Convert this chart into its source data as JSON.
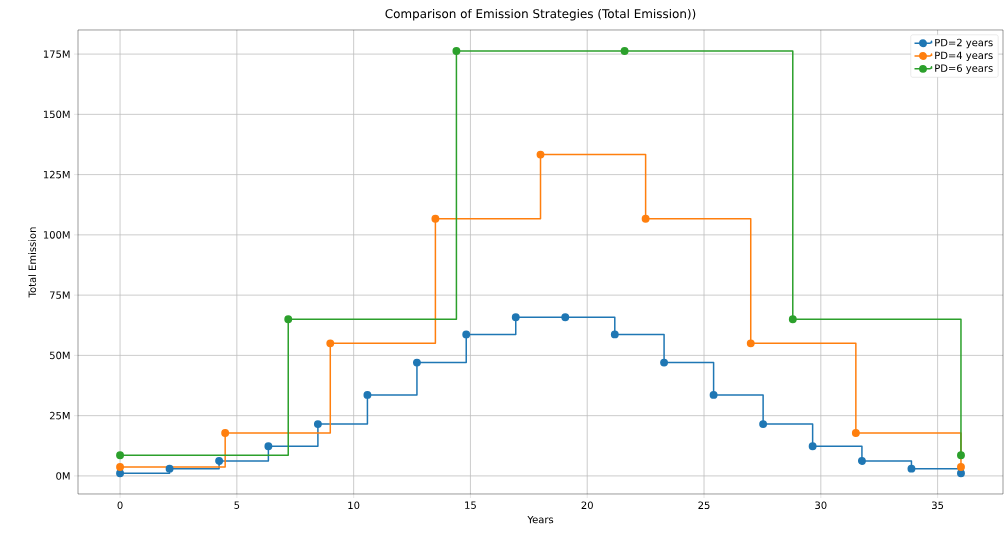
{
  "chart_data": {
    "type": "step",
    "title": "Comparison of Emission Strategies (Total Emission))",
    "xlabel": "Years",
    "ylabel": "Total Emission",
    "series": [
      {
        "name": "PD=2 years",
        "color": "#1f77b4",
        "x": [
          0,
          2.12,
          4.24,
          6.35,
          8.47,
          10.59,
          12.71,
          14.82,
          16.94,
          19.06,
          21.18,
          23.29,
          25.41,
          27.53,
          29.65,
          31.76,
          33.88,
          36
        ],
        "values": [
          1.1,
          3,
          6.2,
          12.3,
          21.5,
          33.6,
          47,
          58.7,
          65.8,
          65.8,
          58.7,
          47,
          33.6,
          21.5,
          12.3,
          6.2,
          3,
          1.1
        ]
      },
      {
        "name": "PD=4 years",
        "color": "#ff7f0e",
        "x": [
          0,
          4.5,
          9,
          13.5,
          18,
          22.5,
          27,
          31.5,
          36
        ],
        "values": [
          3.7,
          17.8,
          55,
          106.7,
          133.3,
          106.7,
          55,
          17.8,
          3.7
        ]
      },
      {
        "name": "PD=6 years",
        "color": "#2ca02c",
        "x": [
          0,
          7.2,
          14.4,
          21.6,
          28.8,
          36
        ],
        "values": [
          8.6,
          65,
          176.3,
          176.3,
          65,
          8.6
        ]
      }
    ],
    "xlim": [
      -1.8,
      37.8
    ],
    "ylim": [
      -7.5,
      185
    ],
    "xticks": [
      0,
      5,
      10,
      15,
      20,
      25,
      30,
      35
    ],
    "yticks": [
      {
        "value": 0,
        "label": "0M"
      },
      {
        "value": 25,
        "label": "25M"
      },
      {
        "value": 50,
        "label": "50M"
      },
      {
        "value": 75,
        "label": "75M"
      },
      {
        "value": 100,
        "label": "100M"
      },
      {
        "value": 125,
        "label": "125M"
      },
      {
        "value": 150,
        "label": "150M"
      },
      {
        "value": 175,
        "label": "175M"
      }
    ],
    "grid": true,
    "legend": "top right",
    "marker": "circle",
    "line_style": "solid"
  }
}
